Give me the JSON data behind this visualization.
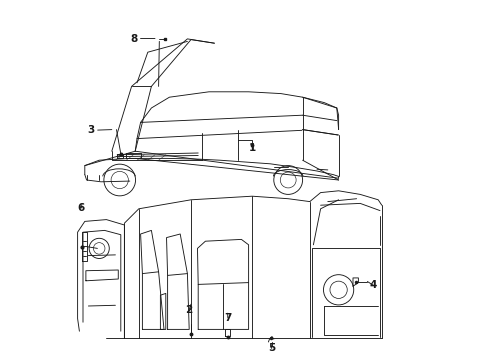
{
  "background_color": "#ffffff",
  "line_color": "#1a1a1a",
  "figsize": [
    4.9,
    3.6
  ],
  "dpi": 100,
  "top_car": {
    "ox": 0.04,
    "oy": 0.5,
    "sx": 0.9,
    "sy": 0.46
  },
  "bot_car": {
    "ox": 0.04,
    "oy": 0.03,
    "sx": 0.92,
    "sy": 0.46
  },
  "labels": {
    "1": [
      0.555,
      0.595,
      0.555,
      0.57
    ],
    "2": [
      0.275,
      0.165,
      0.26,
      0.142
    ],
    "3": [
      0.12,
      0.64,
      0.078,
      0.64
    ],
    "4": [
      0.82,
      0.21,
      0.862,
      0.21
    ],
    "5": [
      0.575,
      0.062,
      0.574,
      0.04
    ],
    "6": [
      0.075,
      0.415,
      0.063,
      0.438
    ],
    "7": [
      0.36,
      0.148,
      0.355,
      0.126
    ],
    "8": [
      0.24,
      0.895,
      0.196,
      0.895
    ]
  }
}
